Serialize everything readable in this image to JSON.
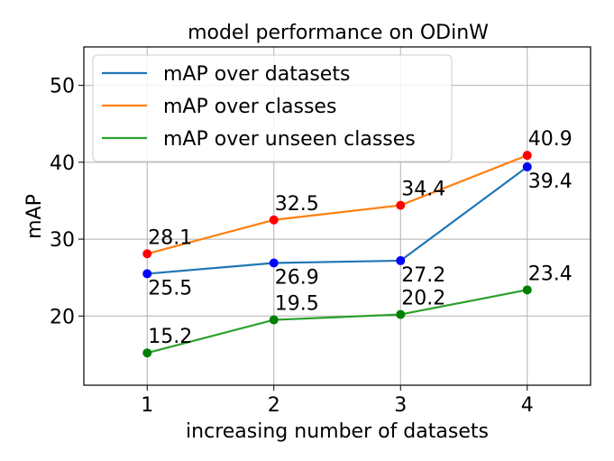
{
  "chart_data": {
    "type": "line",
    "title": "model performance on ODinW",
    "xlabel": "increasing number of datasets",
    "ylabel": "mAP",
    "x": [
      1,
      2,
      3,
      4
    ],
    "xlim": [
      0.5,
      4.5
    ],
    "ylim": [
      11,
      55
    ],
    "xticks": [
      "1",
      "2",
      "3",
      "4"
    ],
    "yticks": [
      20,
      30,
      40,
      50
    ],
    "ytick_labels": [
      "20",
      "30",
      "40",
      "50"
    ],
    "grid": true,
    "legend_position": "upper-left",
    "series": [
      {
        "name": "mAP over datasets",
        "values": [
          25.5,
          26.9,
          27.2,
          39.4
        ],
        "labels": [
          "25.5",
          "26.9",
          "27.2",
          "39.4"
        ],
        "line_color": "#1f77b4",
        "marker_color": "#0000ff",
        "label_position": "below"
      },
      {
        "name": "mAP over classes",
        "values": [
          28.1,
          32.5,
          34.4,
          40.9
        ],
        "labels": [
          "28.1",
          "32.5",
          "34.4",
          "40.9"
        ],
        "line_color": "#ff7f0e",
        "marker_color": "#ff0000",
        "label_position": "above"
      },
      {
        "name": "mAP over unseen classes",
        "values": [
          15.2,
          19.5,
          20.2,
          23.4
        ],
        "labels": [
          "15.2",
          "19.5",
          "20.2",
          "23.4"
        ],
        "line_color": "#2ca02c",
        "marker_color": "#008000",
        "label_position": "above"
      }
    ]
  }
}
